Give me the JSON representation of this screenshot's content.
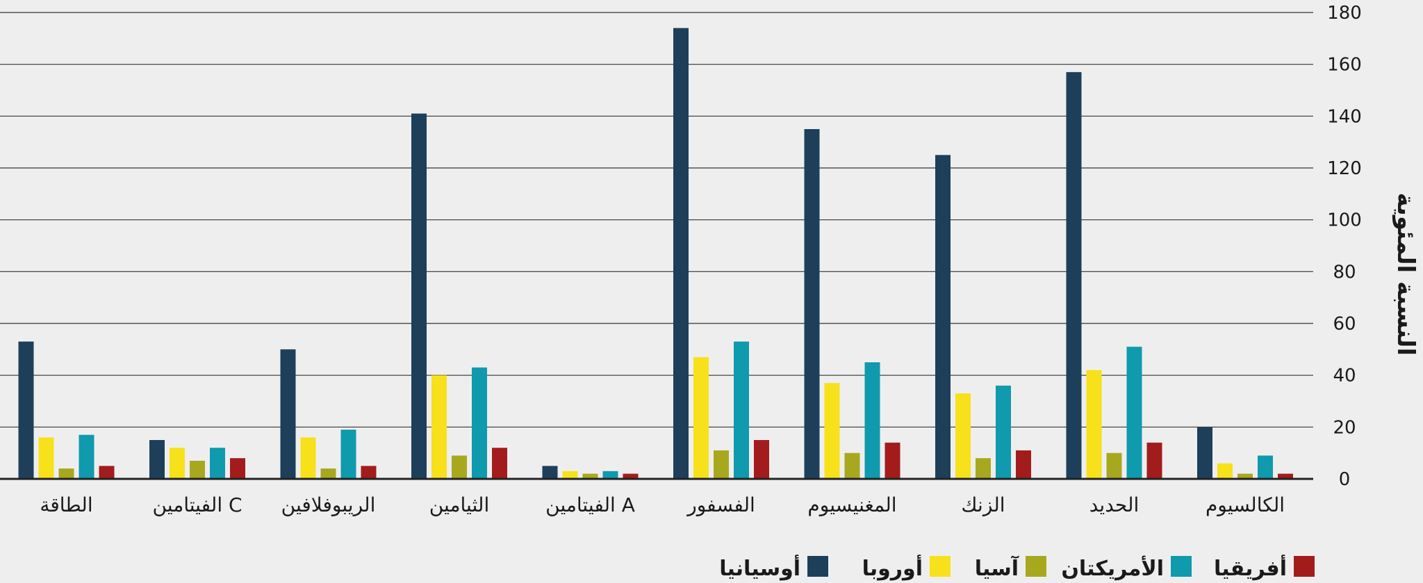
{
  "chart_data": {
    "type": "bar",
    "title": "",
    "ylabel": "النسبة المئوية",
    "xlabel": "",
    "ylim": [
      0,
      180
    ],
    "yticks": [
      0,
      20,
      40,
      60,
      80,
      100,
      120,
      140,
      160,
      180
    ],
    "grid": true,
    "legend_position": "bottom",
    "axis_side": "right",
    "categories": [
      "الكالسيوم",
      "الحديد",
      "الزنك",
      "المغنيسيوم",
      "الفسفور",
      "الفيتامين A",
      "الثيامين",
      "الريبوفلافين",
      "الفيتامين C",
      "الطاقة"
    ],
    "series": [
      {
        "name": "أوسيانيا",
        "color": "#1d3f5a",
        "values": [
          20,
          157,
          125,
          135,
          174,
          5,
          141,
          50,
          15,
          53
        ]
      },
      {
        "name": "أوروبا",
        "color": "#f7e11b",
        "values": [
          6,
          42,
          33,
          37,
          47,
          3,
          40,
          16,
          12,
          16
        ]
      },
      {
        "name": "آسيا",
        "color": "#a8a81f",
        "values": [
          2,
          10,
          8,
          10,
          11,
          2,
          9,
          4,
          7,
          4
        ]
      },
      {
        "name": "الأمريكتان",
        "color": "#0f9aad",
        "values": [
          9,
          51,
          36,
          45,
          53,
          3,
          43,
          19,
          12,
          17
        ]
      },
      {
        "name": "أفريقيا",
        "color": "#a31c1c",
        "values": [
          2,
          14,
          11,
          14,
          15,
          2,
          12,
          5,
          8,
          5
        ]
      }
    ],
    "legend_order": [
      "أفريقيا",
      "الأمريكتان",
      "آسيا",
      "أوروبا",
      "أوسيانيا"
    ]
  }
}
